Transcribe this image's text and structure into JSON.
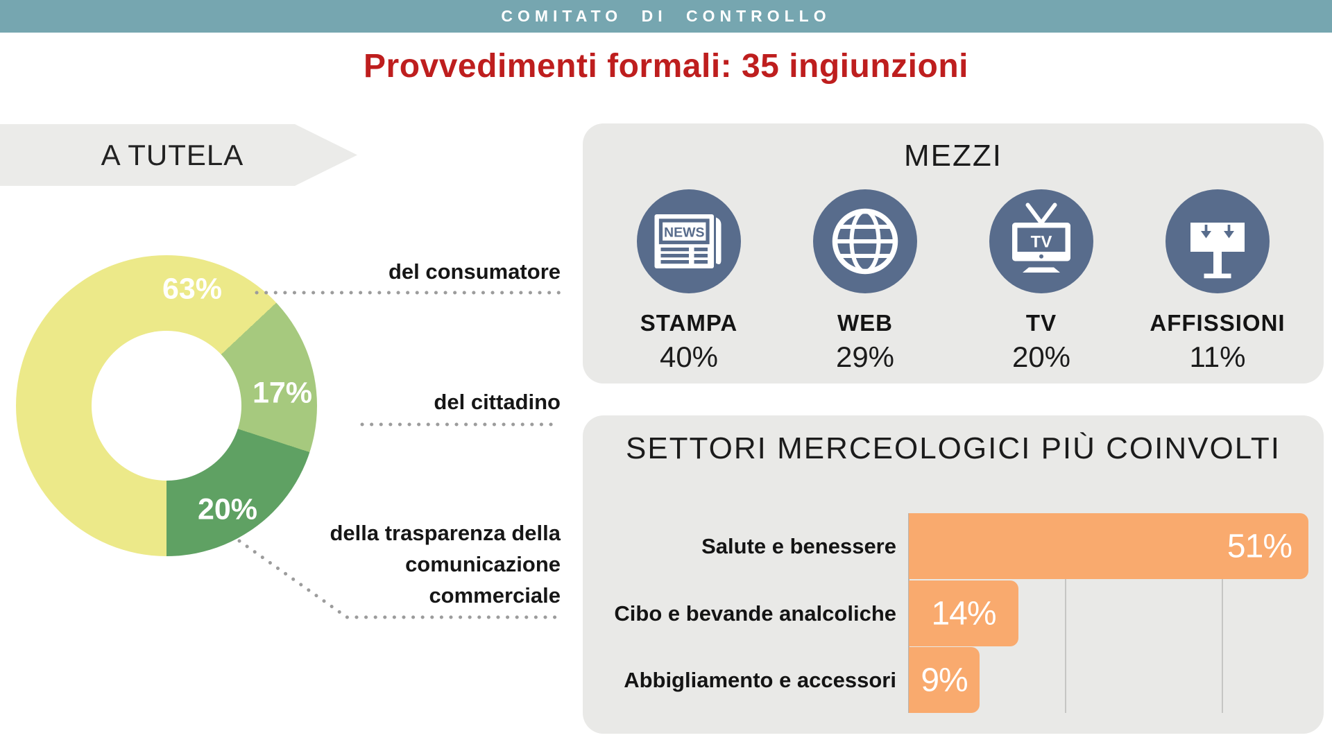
{
  "header": {
    "bar_label": "COMITATO DI CONTROLLO",
    "bar_color": "#76a6b0"
  },
  "title": {
    "text": "Provvedimenti formali: 35 ingiunzioni",
    "color": "#be1e1e"
  },
  "tutela": {
    "banner_label": "A TUTELA",
    "slices": [
      {
        "label": "del consumatore",
        "pct_label": "63%",
        "value_pct": 63,
        "color": "#ece989"
      },
      {
        "label": "del cittadino",
        "pct_label": "17%",
        "value_pct": 17,
        "color": "#a6c97e"
      },
      {
        "label": "della trasparenza della comunicazione commerciale",
        "pct_label": "20%",
        "value_pct": 20,
        "color": "#5fa163"
      }
    ],
    "slice3_lines": [
      "della trasparenza della",
      "comunicazione",
      "commerciale"
    ]
  },
  "mezzi": {
    "title": "MEZZI",
    "icon_color": "#586c8c",
    "items": [
      {
        "icon": "newspaper-icon",
        "icon_text": "NEWS",
        "label": "STAMPA",
        "pct_label": "40%",
        "value_pct": 40
      },
      {
        "icon": "globe-icon",
        "label": "WEB",
        "pct_label": "29%",
        "value_pct": 29
      },
      {
        "icon": "tv-icon",
        "icon_text": "TV",
        "label": "TV",
        "pct_label": "20%",
        "value_pct": 20
      },
      {
        "icon": "billboard-icon",
        "label": "AFFISSIONI",
        "pct_label": "11%",
        "value_pct": 11
      }
    ]
  },
  "settori": {
    "title": "SETTORI MERCEOLOGICI PIÙ COINVOLTI",
    "bar_color": "#f9aa6e",
    "rows": [
      {
        "label": "Salute e benessere",
        "pct_label": "51%",
        "value_pct": 51,
        "value_align": "right"
      },
      {
        "label": "Cibo e bevande analcoliche",
        "pct_label": "14%",
        "value_pct": 14,
        "value_align": "center"
      },
      {
        "label": "Abbigliamento e accessori",
        "pct_label": "9%",
        "value_pct": 9,
        "value_align": "center"
      }
    ],
    "gridlines_pct": [
      20,
      40
    ]
  },
  "chart_data": [
    {
      "type": "pie",
      "donut": true,
      "title": "A TUTELA",
      "categories": [
        "del consumatore",
        "del cittadino",
        "della trasparenza della comunicazione commerciale"
      ],
      "values": [
        63,
        17,
        20
      ],
      "unit": "%",
      "colors": [
        "#ece989",
        "#a6c97e",
        "#5fa163"
      ],
      "start_angle_deg_clockwise_from_top": 180,
      "labels_inside": [
        "63%",
        "17%",
        "20%"
      ]
    },
    {
      "type": "table",
      "title": "MEZZI",
      "categories": [
        "STAMPA",
        "WEB",
        "TV",
        "AFFISSIONI"
      ],
      "values": [
        40,
        29,
        20,
        11
      ],
      "unit": "%",
      "icons": [
        "newspaper",
        "globe",
        "tv",
        "billboard"
      ]
    },
    {
      "type": "bar",
      "orientation": "horizontal",
      "title": "SETTORI MERCEOLOGICI PIÙ COINVOLTI",
      "categories": [
        "Salute e benessere",
        "Cibo e bevande analcoliche",
        "Abbigliamento e accessori"
      ],
      "values": [
        51,
        14,
        9
      ],
      "unit": "%",
      "xlim": [
        0,
        53
      ],
      "gridlines_at": [
        20,
        40
      ],
      "bar_color": "#f9aa6e",
      "grid": true,
      "legend": false
    }
  ]
}
